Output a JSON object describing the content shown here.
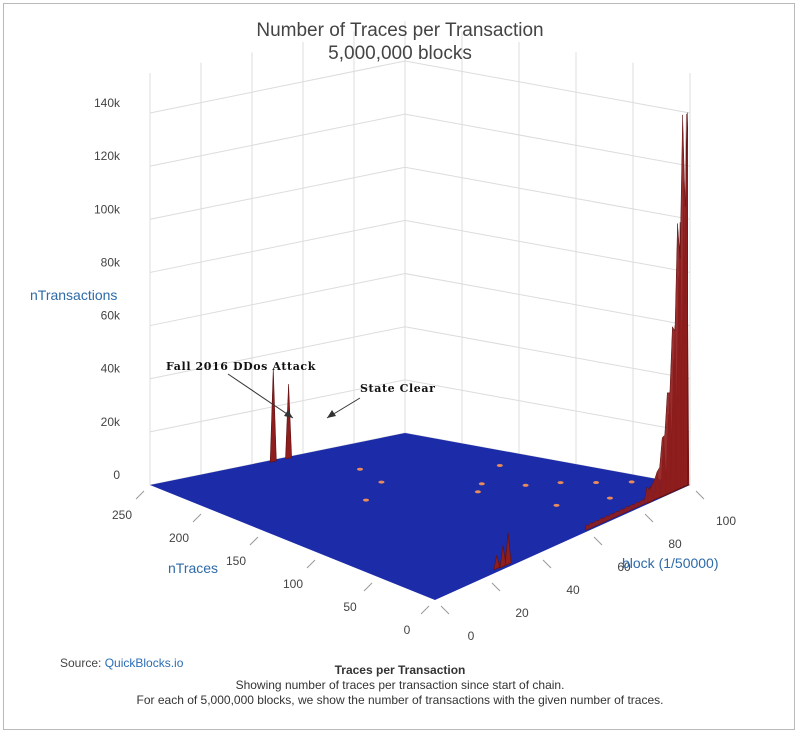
{
  "chart_data": {
    "type": "surface",
    "title": "Number of Traces per Transaction",
    "subtitle": "5,000,000 blocks",
    "x_axis": {
      "label": "block (1/50000)",
      "range": [
        0,
        100
      ],
      "ticks": [
        "0",
        "20",
        "40",
        "60",
        "80",
        "100"
      ]
    },
    "y_axis": {
      "label": "nTraces",
      "range": [
        0,
        250
      ],
      "ticks": [
        "0",
        "50",
        "100",
        "150",
        "200",
        "250"
      ]
    },
    "z_axis": {
      "label": "nTransactions",
      "range": [
        0,
        140000
      ],
      "ticks": [
        "0",
        "20k",
        "40k",
        "60k",
        "80k",
        "100k",
        "120k",
        "140k"
      ]
    },
    "colors": {
      "low": "#1c2ba8",
      "high": "#8e1d1d",
      "grid": "#dcdcdc"
    },
    "peaks": [
      {
        "block": 99,
        "nTraces": 1,
        "nTransactions": 140000
      },
      {
        "block": 98,
        "nTraces": 1,
        "nTransactions": 115000
      },
      {
        "block": 97,
        "nTraces": 2,
        "nTransactions": 100000
      },
      {
        "block": 96,
        "nTraces": 1,
        "nTransactions": 80000
      },
      {
        "block": 95,
        "nTraces": 2,
        "nTransactions": 62000
      },
      {
        "block": 94,
        "nTraces": 1,
        "nTransactions": 50000
      },
      {
        "block": 93,
        "nTraces": 2,
        "nTransactions": 38000
      },
      {
        "block": 92,
        "nTraces": 1,
        "nTransactions": 30000
      },
      {
        "block": 91,
        "nTraces": 3,
        "nTransactions": 22000
      },
      {
        "block": 90,
        "nTraces": 1,
        "nTransactions": 15000
      },
      {
        "block": 88,
        "nTraces": 2,
        "nTransactions": 10000
      },
      {
        "block": 85,
        "nTraces": 1,
        "nTransactions": 6000
      },
      {
        "block": 30,
        "nTraces": 3,
        "nTransactions": 12000
      },
      {
        "block": 28,
        "nTraces": 3,
        "nTransactions": 8000
      },
      {
        "block": 26,
        "nTraces": 4,
        "nTransactions": 5000
      },
      {
        "block": 47,
        "nTraces": 247,
        "nTransactions": 35000
      },
      {
        "block": 53,
        "nTraces": 247,
        "nTransactions": 28000
      }
    ],
    "annotations": [
      {
        "text": "Fall 2016 DDos Attack",
        "block": 47,
        "nTraces": 247
      },
      {
        "text": "State Clear",
        "block": 53,
        "nTraces": 247
      }
    ]
  },
  "source": {
    "label": "Source:",
    "link": "QuickBlocks.io"
  },
  "caption": {
    "title": "Traces per Transaction",
    "line1": "Showing number of traces per transaction since start of chain.",
    "line2": "For each of 5,000,000 blocks, we show the number of transactions with the given number of traces."
  }
}
